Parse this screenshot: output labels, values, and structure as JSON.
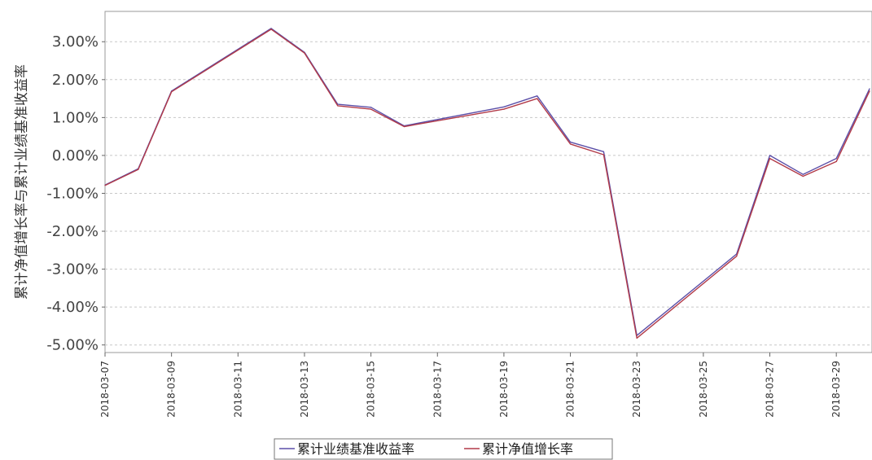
{
  "chart_data": {
    "type": "line",
    "title": "",
    "xlabel": "",
    "ylabel": "累计净值增长率与累计业绩基准收益率",
    "ylim": [
      -5.2,
      3.8
    ],
    "y_ticks": [
      -5,
      -4,
      -3,
      -2,
      -1,
      0,
      1,
      2,
      3
    ],
    "y_tick_labels": [
      "-5.00%",
      "-4.00%",
      "-3.00%",
      "-2.00%",
      "-1.00%",
      "0.00%",
      "1.00%",
      "2.00%",
      "3.00%"
    ],
    "x_tick_labels": [
      "2018-03-07",
      "2018-03-09",
      "2018-03-11",
      "2018-03-13",
      "2018-03-15",
      "2018-03-17",
      "2018-03-19",
      "2018-03-21",
      "2018-03-23",
      "2018-03-25",
      "2018-03-27",
      "2018-03-29"
    ],
    "x": [
      "2018-03-07",
      "2018-03-08",
      "2018-03-09",
      "2018-03-12",
      "2018-03-13",
      "2018-03-14",
      "2018-03-15",
      "2018-03-16",
      "2018-03-19",
      "2018-03-20",
      "2018-03-21",
      "2018-03-22",
      "2018-03-23",
      "2018-03-26",
      "2018-03-27",
      "2018-03-28",
      "2018-03-29",
      "2018-03-30"
    ],
    "grid": true,
    "legend_position": "bottom-center",
    "series": [
      {
        "name": "累计业绩基准收益率",
        "color": "#5b4fa8",
        "values": [
          -0.78,
          -0.35,
          1.7,
          3.35,
          2.72,
          1.35,
          1.27,
          0.78,
          1.28,
          1.57,
          0.35,
          0.1,
          -4.75,
          -2.6,
          0.0,
          -0.5,
          -0.08,
          1.76
        ]
      },
      {
        "name": "累计净值增长率",
        "color": "#b23a48",
        "values": [
          -0.79,
          -0.37,
          1.68,
          3.33,
          2.7,
          1.31,
          1.22,
          0.76,
          1.22,
          1.5,
          0.3,
          0.02,
          -4.82,
          -2.66,
          -0.08,
          -0.55,
          -0.16,
          1.7
        ]
      }
    ]
  }
}
